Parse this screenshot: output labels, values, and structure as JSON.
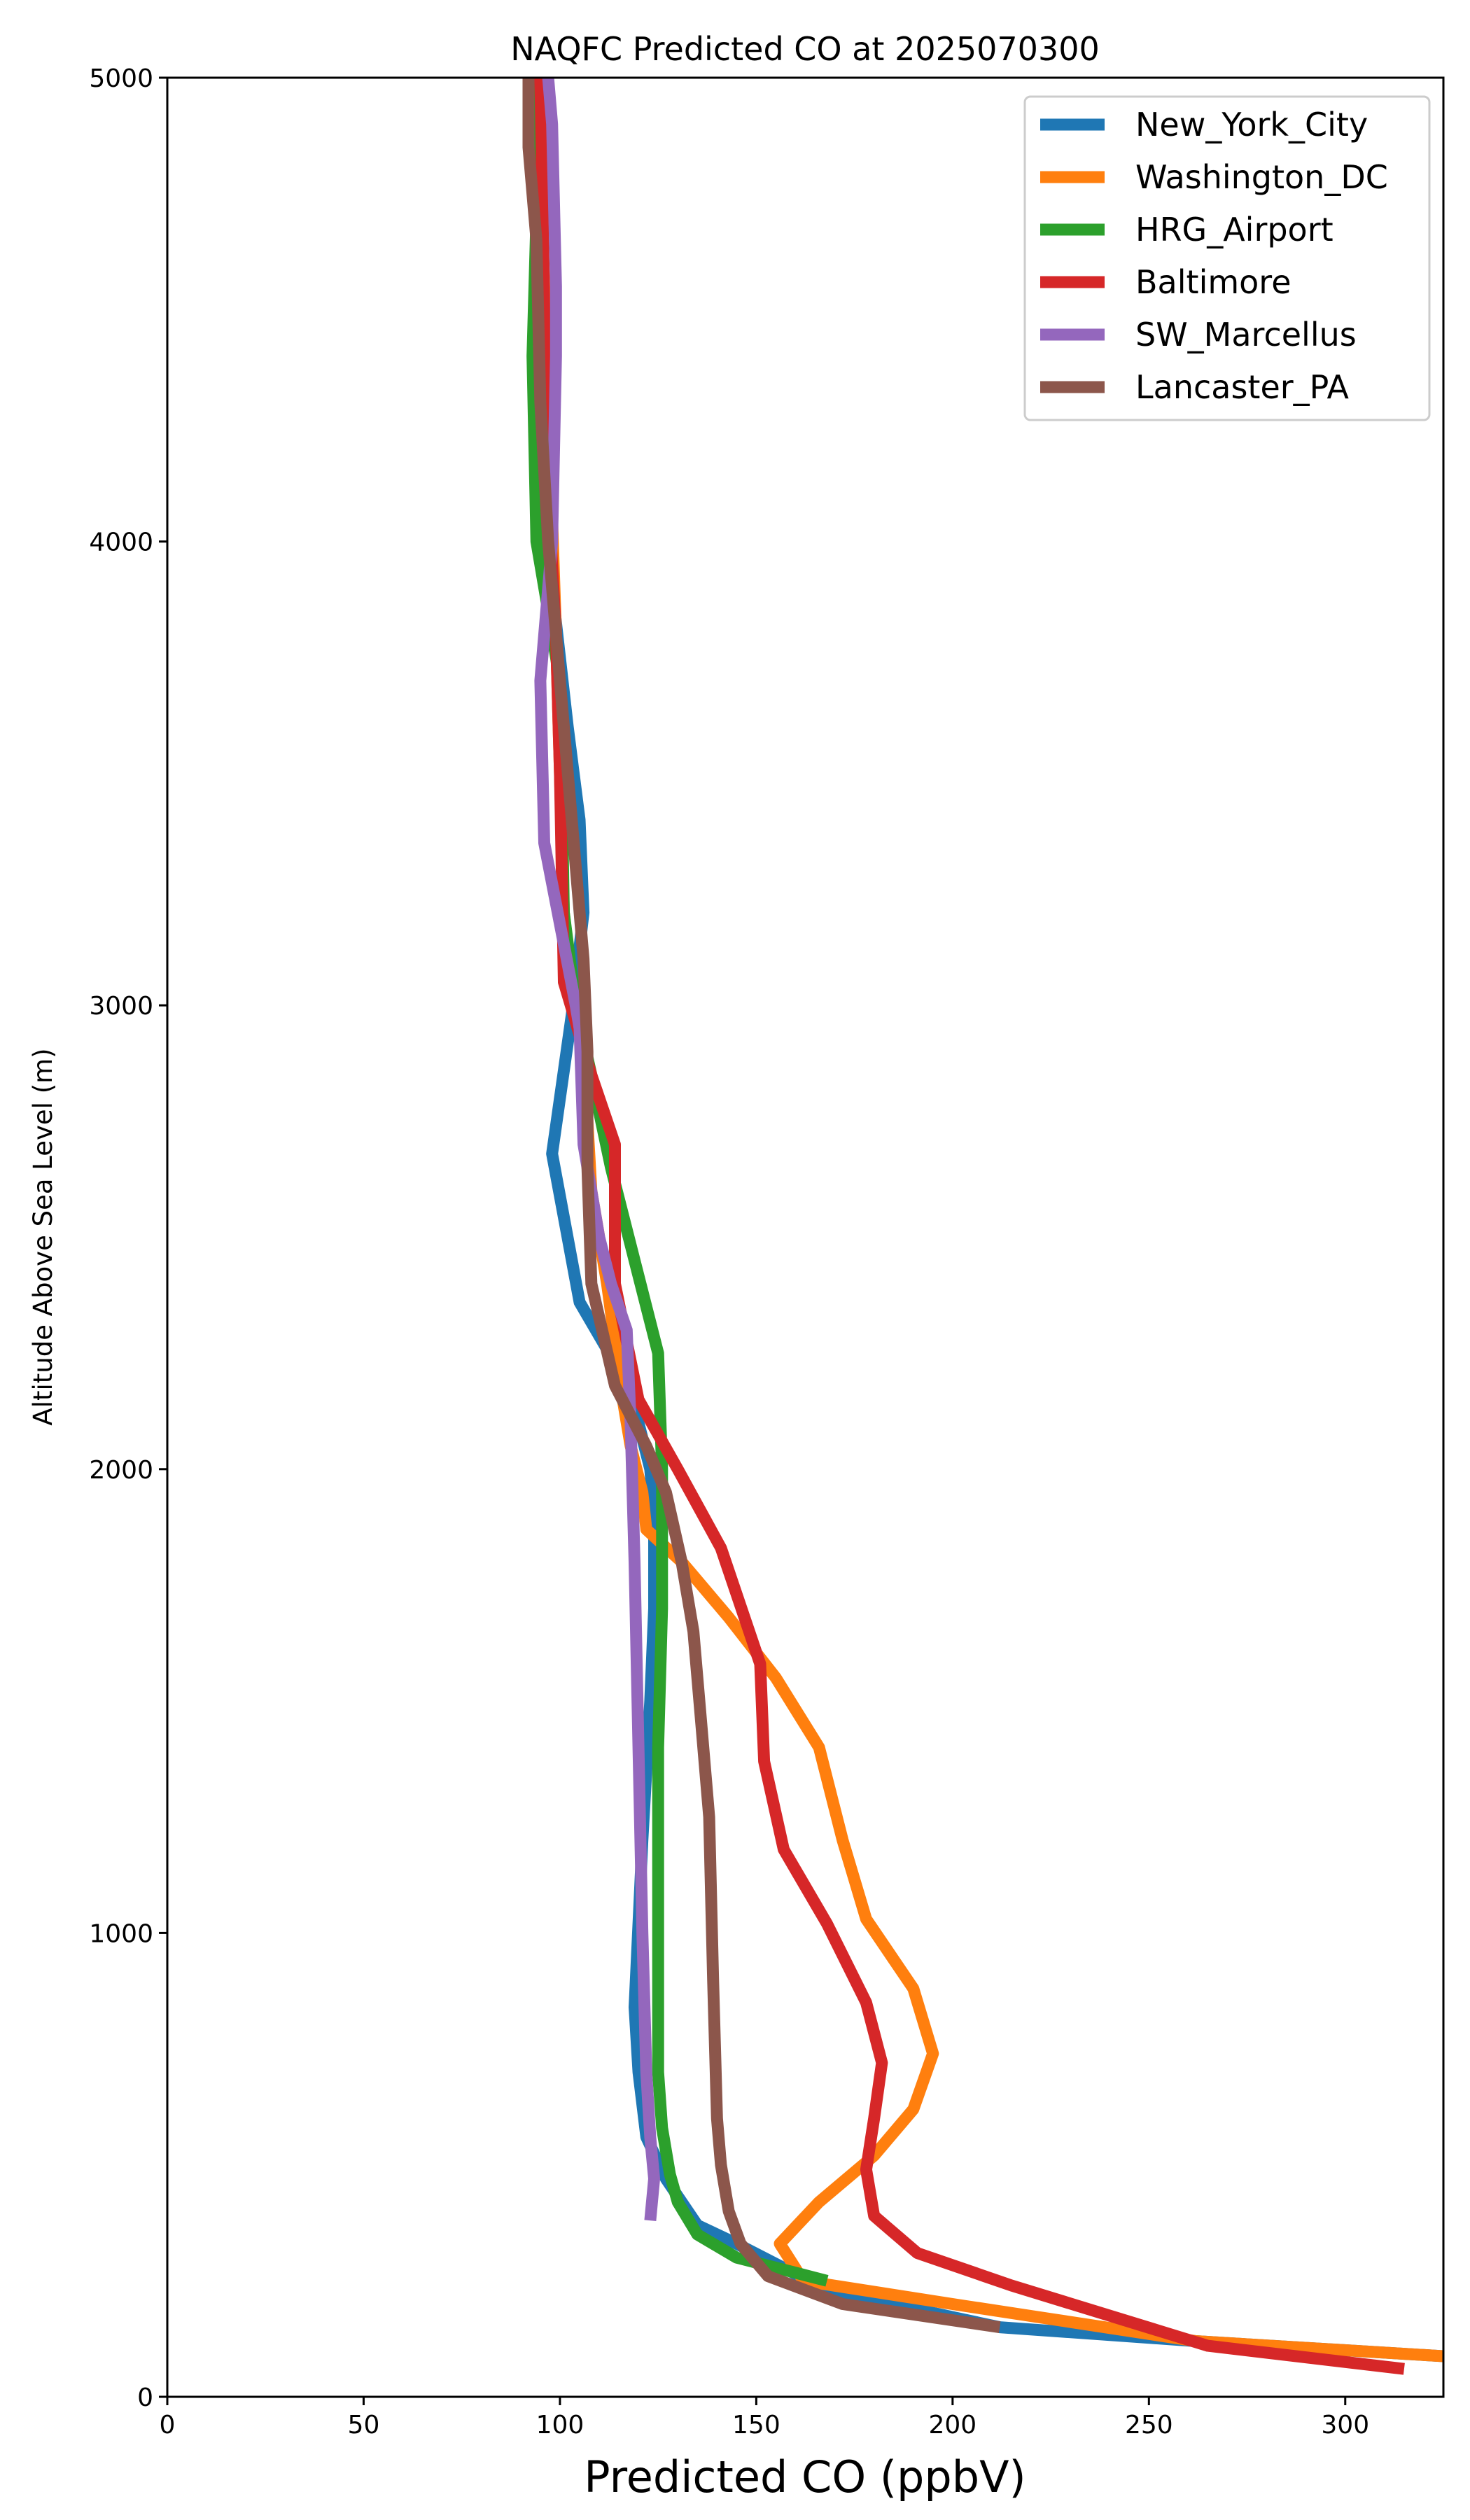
{
  "chart_data": {
    "type": "line",
    "title": "NAQFC Predicted CO at 2025070300",
    "xlabel": "Predicted CO (ppbV)",
    "ylabel": "Altitude Above Sea Level (m)",
    "xlim": [
      0,
      325
    ],
    "ylim": [
      0,
      5000
    ],
    "xticks": [
      0,
      50,
      100,
      150,
      200,
      250,
      300
    ],
    "yticks": [
      0,
      1000,
      2000,
      3000,
      4000,
      5000
    ],
    "grid": false,
    "legend_position": "top-right",
    "series": [
      {
        "name": "New_York_City",
        "color": "#1f77b4",
        "points": [
          [
            330,
            85
          ],
          [
            262,
            120
          ],
          [
            212,
            150
          ],
          [
            168,
            230
          ],
          [
            145,
            330
          ],
          [
            135,
            370
          ],
          [
            127,
            470
          ],
          [
            122,
            560
          ],
          [
            120,
            700
          ],
          [
            119,
            840
          ],
          [
            121,
            1200
          ],
          [
            123,
            1500
          ],
          [
            124,
            1700
          ],
          [
            124,
            1900
          ],
          [
            123,
            2000
          ],
          [
            120,
            2100
          ],
          [
            116,
            2200
          ],
          [
            105,
            2360
          ],
          [
            98,
            2680
          ],
          [
            103,
            2980
          ],
          [
            106,
            3200
          ],
          [
            105,
            3400
          ],
          [
            102,
            3600
          ],
          [
            98,
            3900
          ]
        ]
      },
      {
        "name": "Washington_DC",
        "color": "#ff7f0e",
        "points": [
          [
            330,
            85
          ],
          [
            262,
            120
          ],
          [
            200,
            200
          ],
          [
            162,
            250
          ],
          [
            156,
            330
          ],
          [
            166,
            420
          ],
          [
            180,
            520
          ],
          [
            190,
            620
          ],
          [
            195,
            740
          ],
          [
            190,
            880
          ],
          [
            178,
            1030
          ],
          [
            172,
            1200
          ],
          [
            166,
            1400
          ],
          [
            155,
            1550
          ],
          [
            143,
            1680
          ],
          [
            131,
            1800
          ],
          [
            122,
            1870
          ],
          [
            121,
            1950
          ],
          [
            118,
            2050
          ],
          [
            116,
            2150
          ],
          [
            112,
            2400
          ],
          [
            108,
            2600
          ],
          [
            106,
            2900
          ],
          [
            103,
            3050
          ],
          [
            101,
            3200
          ],
          [
            99,
            3800
          ],
          [
            95,
            4800
          ],
          [
            94,
            5000
          ]
        ]
      },
      {
        "name": "HRG_Airport",
        "color": "#2ca02c",
        "points": [
          [
            168,
            250
          ],
          [
            145,
            300
          ],
          [
            135,
            350
          ],
          [
            130,
            420
          ],
          [
            128,
            480
          ],
          [
            126,
            580
          ],
          [
            125,
            700
          ],
          [
            125,
            1000
          ],
          [
            125,
            1400
          ],
          [
            126,
            1700
          ],
          [
            126,
            2000
          ],
          [
            125,
            2250
          ],
          [
            119,
            2450
          ],
          [
            113,
            2650
          ],
          [
            108,
            2850
          ],
          [
            104,
            3000
          ],
          [
            101,
            3200
          ],
          [
            100,
            3700
          ],
          [
            94,
            4000
          ],
          [
            93,
            4400
          ],
          [
            95,
            5000
          ]
        ]
      },
      {
        "name": "Baltimore",
        "color": "#d62728",
        "points": [
          [
            315,
            60
          ],
          [
            265,
            110
          ],
          [
            215,
            240
          ],
          [
            191,
            310
          ],
          [
            180,
            390
          ],
          [
            178,
            490
          ],
          [
            180,
            600
          ],
          [
            182,
            720
          ],
          [
            178,
            850
          ],
          [
            168,
            1020
          ],
          [
            157,
            1180
          ],
          [
            152,
            1370
          ],
          [
            151,
            1580
          ],
          [
            141,
            1830
          ],
          [
            130,
            2000
          ],
          [
            120,
            2150
          ],
          [
            114,
            2400
          ],
          [
            114,
            2700
          ],
          [
            108,
            2850
          ],
          [
            101,
            3050
          ],
          [
            100,
            3500
          ],
          [
            99,
            3800
          ],
          [
            97,
            4100
          ],
          [
            96,
            4500
          ],
          [
            95,
            5000
          ]
        ]
      },
      {
        "name": "SW_Marcellus",
        "color": "#9467bd",
        "points": [
          [
            123,
            380
          ],
          [
            124,
            470
          ],
          [
            123,
            560
          ],
          [
            122,
            700
          ],
          [
            121,
            1000
          ],
          [
            120,
            1400
          ],
          [
            119,
            1800
          ],
          [
            118,
            2100
          ],
          [
            117,
            2300
          ],
          [
            113,
            2400
          ],
          [
            110,
            2500
          ],
          [
            106,
            2700
          ],
          [
            105,
            2950
          ],
          [
            104,
            3000
          ],
          [
            96,
            3350
          ],
          [
            95,
            3700
          ],
          [
            98,
            4000
          ],
          [
            99,
            4400
          ],
          [
            99,
            4550
          ],
          [
            98,
            4900
          ],
          [
            97,
            5000
          ]
        ]
      },
      {
        "name": "Lancaster_PA",
        "color": "#8c564b",
        "points": [
          [
            212,
            150
          ],
          [
            172,
            200
          ],
          [
            153,
            260
          ],
          [
            146,
            330
          ],
          [
            143,
            400
          ],
          [
            141,
            500
          ],
          [
            140,
            600
          ],
          [
            139,
            900
          ],
          [
            138,
            1250
          ],
          [
            136,
            1450
          ],
          [
            134,
            1650
          ],
          [
            131,
            1800
          ],
          [
            127,
            1950
          ],
          [
            122,
            2050
          ],
          [
            114,
            2180
          ],
          [
            108,
            2400
          ],
          [
            107,
            2650
          ],
          [
            107,
            2900
          ],
          [
            106,
            3100
          ],
          [
            103,
            3400
          ],
          [
            100,
            3700
          ],
          [
            97,
            4000
          ],
          [
            95,
            4300
          ],
          [
            94,
            4650
          ],
          [
            92,
            4850
          ],
          [
            92,
            5000
          ]
        ]
      }
    ]
  }
}
